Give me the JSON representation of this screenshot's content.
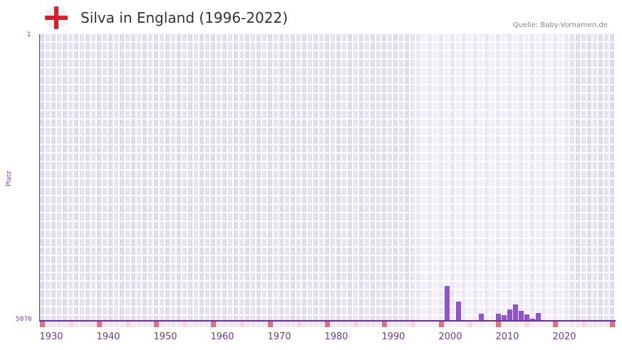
{
  "header": {
    "title": "Silva in England (1996-2022)",
    "source": "Quelle: Baby-Vornamen.de",
    "flag_icon": "england-flag-icon"
  },
  "chart_data": {
    "type": "bar",
    "title": "Silva in England (1996-2022)",
    "xlabel": "",
    "ylabel": "Platz",
    "ylim": [
      5876,
      1
    ],
    "y_ticks": [
      "1",
      "5876"
    ],
    "x_ticks": [
      "1930",
      "1940",
      "1950",
      "1960",
      "1970",
      "1980",
      "1990",
      "2000",
      "2010",
      "2020"
    ],
    "x_range": [
      1928,
      2028
    ],
    "highlight_range": [
      1996,
      2022
    ],
    "categories": [
      "1999",
      "2001",
      "2005",
      "2008",
      "2009",
      "2010",
      "2011",
      "2012",
      "2013",
      "2014",
      "2015"
    ],
    "values": [
      5170,
      5494,
      5744,
      5744,
      5770,
      5656,
      5553,
      5685,
      5758,
      5847,
      5729
    ],
    "colors": {
      "bar": "#8c56c8",
      "axis": "#6b2f9e",
      "decade_marker": "#e07080",
      "half_decade_marker": "#f5d5de",
      "bg_dark": "#e2ddee",
      "bg_light": "#efeaf8"
    }
  },
  "axis": {
    "y_top": "1",
    "y_bottom": "5876",
    "y_title": "Platz"
  }
}
